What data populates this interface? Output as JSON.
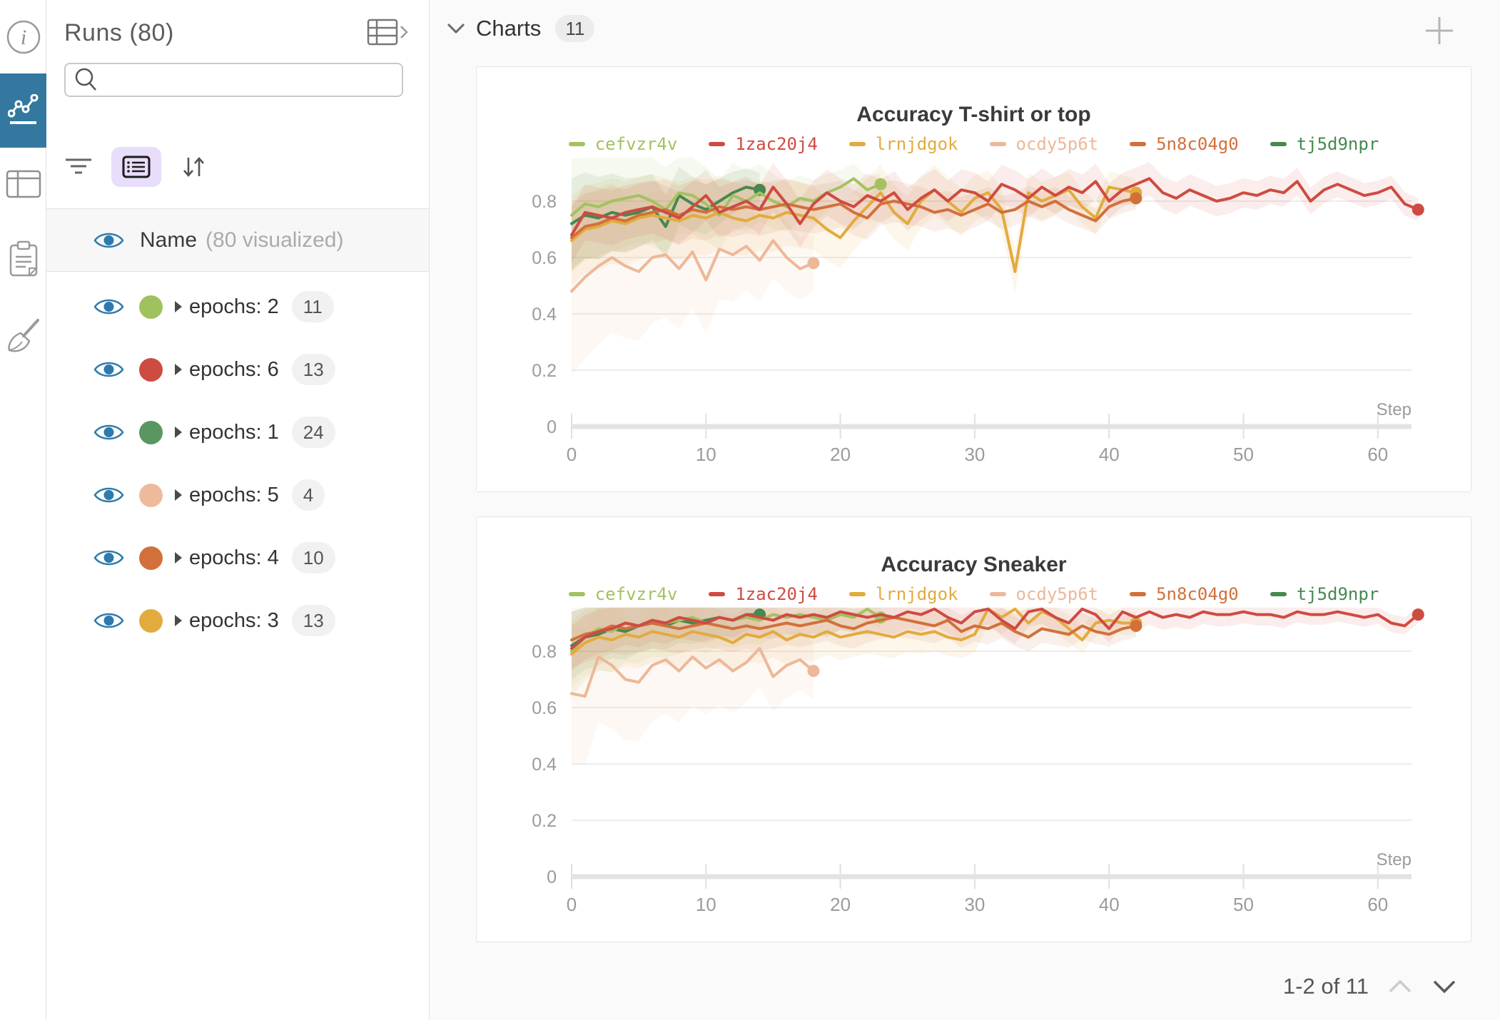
{
  "iconbar": {
    "items": [
      "info",
      "panel-charts",
      "runs-table",
      "notes",
      "sweep-broom"
    ]
  },
  "runs_panel": {
    "title": "Runs (80)",
    "search": {
      "placeholder": "",
      "value": ""
    },
    "name_row": {
      "label": "Name",
      "hint": "(80 visualized)"
    },
    "rows": [
      {
        "label": "epochs: 2",
        "count": "11",
        "color": "#9fc25f"
      },
      {
        "label": "epochs: 6",
        "count": "13",
        "color": "#ce4b42"
      },
      {
        "label": "epochs: 1",
        "count": "24",
        "color": "#58975f"
      },
      {
        "label": "epochs: 5",
        "count": "4",
        "color": "#edbb9c"
      },
      {
        "label": "epochs: 4",
        "count": "10",
        "color": "#d2703b"
      },
      {
        "label": "epochs: 3",
        "count": "13",
        "color": "#e2ab3d"
      }
    ]
  },
  "charts_header": {
    "title": "Charts",
    "count": "11"
  },
  "pagination": {
    "label": "1-2 of 11"
  },
  "colors": {
    "accent_blue": "#34789f",
    "purple_btn": "#e8ddfa",
    "axis_gray": "#e3e3e3",
    "tick_text": "#999999"
  },
  "chart_data": [
    {
      "type": "line",
      "title": "Accuracy T-shirt or top",
      "xlabel": "Step",
      "x_ticks": [
        0,
        10,
        20,
        30,
        40,
        50,
        60
      ],
      "y_ticks": [
        0.2,
        0.4,
        0.6,
        0.8
      ],
      "xlim": [
        0,
        63
      ],
      "ylim": [
        0,
        1
      ],
      "grid": true,
      "legend_position": "top",
      "series": [
        {
          "name": "cefvzr4v",
          "color": "#a3c25f",
          "x_start": 0,
          "draw_order": 3,
          "end_dot": true,
          "band": [
            0.2,
            0.04
          ],
          "values": [
            0.75,
            0.79,
            0.78,
            0.8,
            0.81,
            0.82,
            0.8,
            0.77,
            0.83,
            0.82,
            0.79,
            0.75,
            0.82,
            0.8,
            0.83,
            0.8,
            0.78,
            0.81,
            0.8,
            0.83,
            0.85,
            0.88,
            0.84,
            0.86
          ]
        },
        {
          "name": "1zac20j4",
          "color": "#ce4b42",
          "x_start": 0,
          "draw_order": 6,
          "end_dot": true,
          "band": [
            0.1,
            0.04
          ],
          "values": [
            0.68,
            0.76,
            0.75,
            0.74,
            0.76,
            0.77,
            0.78,
            0.76,
            0.74,
            0.78,
            0.82,
            0.76,
            0.78,
            0.8,
            0.77,
            0.85,
            0.79,
            0.72,
            0.79,
            0.83,
            0.8,
            0.78,
            0.82,
            0.8,
            0.83,
            0.77,
            0.81,
            0.84,
            0.8,
            0.84,
            0.83,
            0.8,
            0.86,
            0.84,
            0.81,
            0.85,
            0.82,
            0.85,
            0.83,
            0.87,
            0.8,
            0.84,
            0.86,
            0.88,
            0.83,
            0.81,
            0.84,
            0.82,
            0.8,
            0.81,
            0.83,
            0.82,
            0.84,
            0.83,
            0.87,
            0.8,
            0.84,
            0.86,
            0.84,
            0.82,
            0.83,
            0.85,
            0.79,
            0.77
          ]
        },
        {
          "name": "lrnjdgok",
          "color": "#e2ab3d",
          "x_start": 0,
          "draw_order": 4,
          "end_dot": true,
          "band": [
            0.16,
            0.05
          ],
          "values": [
            0.66,
            0.7,
            0.71,
            0.73,
            0.72,
            0.74,
            0.75,
            0.74,
            0.73,
            0.75,
            0.74,
            0.76,
            0.74,
            0.73,
            0.75,
            0.74,
            0.76,
            0.75,
            0.74,
            0.7,
            0.67,
            0.73,
            0.78,
            0.83,
            0.76,
            0.72,
            0.8,
            0.84,
            0.8,
            0.76,
            0.81,
            0.83,
            0.77,
            0.55,
            0.83,
            0.8,
            0.82,
            0.84,
            0.78,
            0.74,
            0.85,
            0.84,
            0.83
          ]
        },
        {
          "name": "ocdy5p6t",
          "color": "#edb898",
          "x_start": 0,
          "draw_order": 1,
          "end_dot": true,
          "band": [
            0.3,
            0.1
          ],
          "values": [
            0.48,
            0.53,
            0.57,
            0.6,
            0.57,
            0.55,
            0.6,
            0.61,
            0.56,
            0.62,
            0.52,
            0.63,
            0.61,
            0.64,
            0.59,
            0.66,
            0.6,
            0.56,
            0.58
          ]
        },
        {
          "name": "5n8c04g0",
          "color": "#d2703b",
          "x_start": 0,
          "draw_order": 5,
          "end_dot": true,
          "band": [
            0.12,
            0.04
          ],
          "values": [
            0.67,
            0.71,
            0.72,
            0.74,
            0.73,
            0.75,
            0.76,
            0.77,
            0.75,
            0.77,
            0.76,
            0.78,
            0.77,
            0.78,
            0.77,
            0.78,
            0.79,
            0.78,
            0.77,
            0.78,
            0.79,
            0.76,
            0.74,
            0.79,
            0.8,
            0.79,
            0.78,
            0.76,
            0.77,
            0.75,
            0.77,
            0.79,
            0.76,
            0.77,
            0.8,
            0.78,
            0.8,
            0.77,
            0.75,
            0.73,
            0.78,
            0.8,
            0.81
          ]
        },
        {
          "name": "tj5d9npr",
          "color": "#46884f",
          "x_start": 0,
          "draw_order": 2,
          "end_dot": true,
          "band": [
            0.16,
            0.06
          ],
          "values": [
            0.72,
            0.75,
            0.74,
            0.76,
            0.75,
            0.76,
            0.78,
            0.71,
            0.82,
            0.79,
            0.77,
            0.8,
            0.83,
            0.85,
            0.84
          ]
        }
      ]
    },
    {
      "type": "line",
      "title": "Accuracy Sneaker",
      "xlabel": "Step",
      "x_ticks": [
        0,
        10,
        20,
        30,
        40,
        50,
        60
      ],
      "y_ticks": [
        0.2,
        0.4,
        0.6,
        0.8
      ],
      "xlim": [
        0,
        63
      ],
      "ylim": [
        0,
        1
      ],
      "grid": true,
      "legend_position": "top",
      "series": [
        {
          "name": "cefvzr4v",
          "color": "#a3c25f",
          "x_start": 0,
          "draw_order": 3,
          "end_dot": true,
          "band": [
            0.16,
            0.04
          ],
          "values": [
            0.8,
            0.85,
            0.88,
            0.87,
            0.9,
            0.89,
            0.91,
            0.9,
            0.91,
            0.92,
            0.9,
            0.92,
            0.91,
            0.92,
            0.91,
            0.93,
            0.92,
            0.93,
            0.92,
            0.91,
            0.93,
            0.92,
            0.95,
            0.92
          ]
        },
        {
          "name": "1zac20j4",
          "color": "#ce4b42",
          "x_start": 0,
          "draw_order": 6,
          "end_dot": true,
          "band": [
            0.08,
            0.03
          ],
          "values": [
            0.81,
            0.85,
            0.87,
            0.88,
            0.9,
            0.89,
            0.91,
            0.9,
            0.92,
            0.91,
            0.9,
            0.92,
            0.91,
            0.93,
            0.92,
            0.91,
            0.93,
            0.92,
            0.93,
            0.92,
            0.94,
            0.93,
            0.92,
            0.93,
            0.92,
            0.94,
            0.93,
            0.95,
            0.92,
            0.9,
            0.94,
            0.95,
            0.91,
            0.88,
            0.94,
            0.95,
            0.92,
            0.9,
            0.95,
            0.93,
            0.88,
            0.94,
            0.92,
            0.94,
            0.92,
            0.93,
            0.92,
            0.94,
            0.93,
            0.93,
            0.94,
            0.93,
            0.93,
            0.92,
            0.94,
            0.93,
            0.93,
            0.94,
            0.93,
            0.92,
            0.93,
            0.9,
            0.89,
            0.93
          ]
        },
        {
          "name": "lrnjdgok",
          "color": "#e2ab3d",
          "x_start": 0,
          "draw_order": 4,
          "end_dot": true,
          "band": [
            0.12,
            0.04
          ],
          "values": [
            0.79,
            0.83,
            0.85,
            0.84,
            0.86,
            0.85,
            0.87,
            0.86,
            0.85,
            0.87,
            0.86,
            0.85,
            0.83,
            0.86,
            0.85,
            0.87,
            0.84,
            0.86,
            0.85,
            0.87,
            0.85,
            0.86,
            0.87,
            0.86,
            0.85,
            0.87,
            0.86,
            0.87,
            0.85,
            0.84,
            0.86,
            0.95,
            0.92,
            0.95,
            0.9,
            0.94,
            0.92,
            0.88,
            0.84,
            0.9,
            0.91,
            0.9,
            0.9
          ]
        },
        {
          "name": "ocdy5p6t",
          "color": "#edb898",
          "x_start": 0,
          "draw_order": 1,
          "end_dot": true,
          "band": [
            0.25,
            0.1
          ],
          "values": [
            0.65,
            0.64,
            0.78,
            0.75,
            0.7,
            0.69,
            0.75,
            0.77,
            0.73,
            0.78,
            0.74,
            0.77,
            0.73,
            0.76,
            0.81,
            0.71,
            0.75,
            0.77,
            0.73
          ]
        },
        {
          "name": "5n8c04g0",
          "color": "#d2703b",
          "x_start": 0,
          "draw_order": 5,
          "end_dot": true,
          "band": [
            0.1,
            0.04
          ],
          "values": [
            0.84,
            0.86,
            0.87,
            0.89,
            0.88,
            0.89,
            0.9,
            0.89,
            0.88,
            0.89,
            0.9,
            0.89,
            0.88,
            0.89,
            0.88,
            0.89,
            0.9,
            0.89,
            0.9,
            0.91,
            0.89,
            0.88,
            0.9,
            0.91,
            0.92,
            0.91,
            0.9,
            0.89,
            0.91,
            0.87,
            0.89,
            0.88,
            0.9,
            0.87,
            0.85,
            0.88,
            0.87,
            0.86,
            0.89,
            0.87,
            0.86,
            0.88,
            0.89
          ]
        },
        {
          "name": "tj5d9npr",
          "color": "#46884f",
          "x_start": 0,
          "draw_order": 2,
          "end_dot": true,
          "band": [
            0.12,
            0.05
          ],
          "values": [
            0.82,
            0.85,
            0.86,
            0.88,
            0.87,
            0.89,
            0.9,
            0.89,
            0.91,
            0.9,
            0.91,
            0.92,
            0.91,
            0.93,
            0.93
          ]
        }
      ]
    }
  ]
}
